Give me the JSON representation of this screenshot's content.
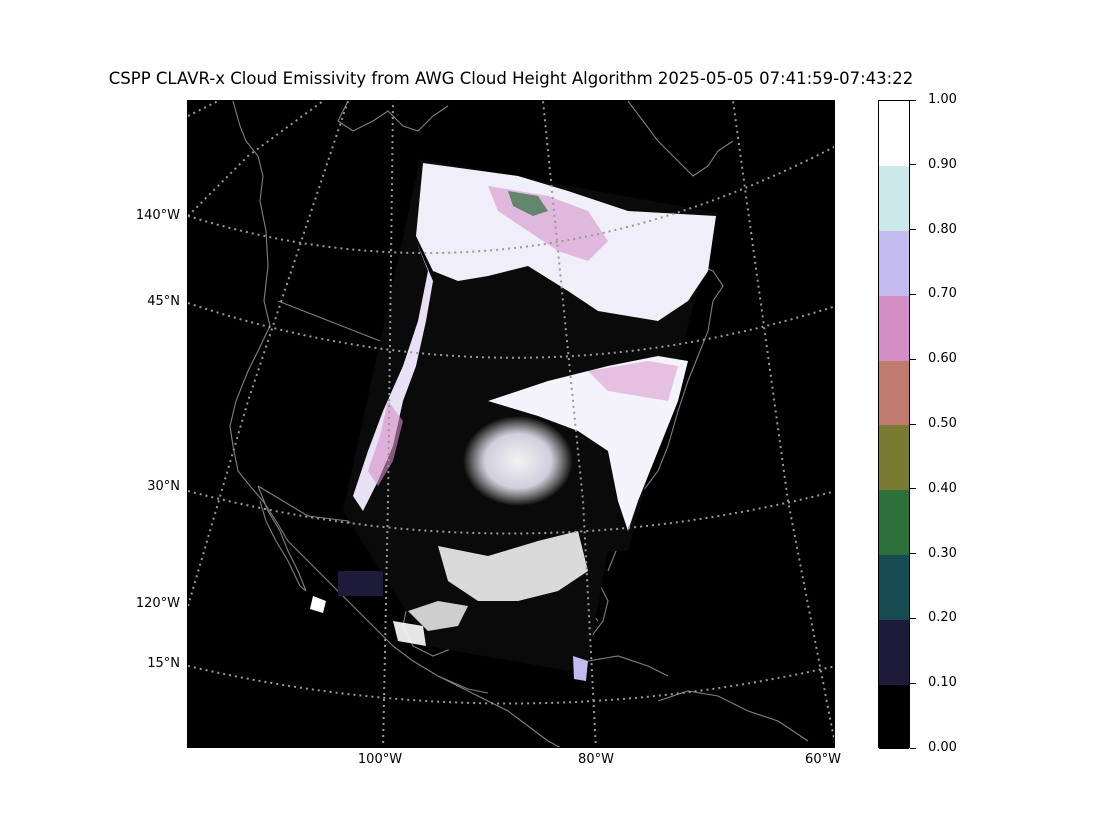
{
  "title": "CSPP CLAVR-x Cloud Emissivity from AWG Cloud Height Algorithm 2025-05-05 07:41:59-07:43:22",
  "map": {
    "background": "#000000",
    "coastline_color": "#808080",
    "grid_color": "#999999",
    "lat_labels": [
      "45°N",
      "30°N",
      "15°N"
    ],
    "lon_left_labels": [
      "140°W",
      "120°W"
    ],
    "lon_bottom_labels": [
      "100°W",
      "80°W",
      "60°W"
    ]
  },
  "colorbar": {
    "ticks": [
      "0.00",
      "0.10",
      "0.20",
      "0.30",
      "0.40",
      "0.50",
      "0.60",
      "0.70",
      "0.80",
      "0.90",
      "1.00"
    ],
    "colors": [
      "#000000",
      "#1e1a3a",
      "#174b52",
      "#2c703a",
      "#7a7b33",
      "#c07b6e",
      "#d58dc6",
      "#c3baf0",
      "#cbe8ea",
      "#ffffff"
    ]
  }
}
